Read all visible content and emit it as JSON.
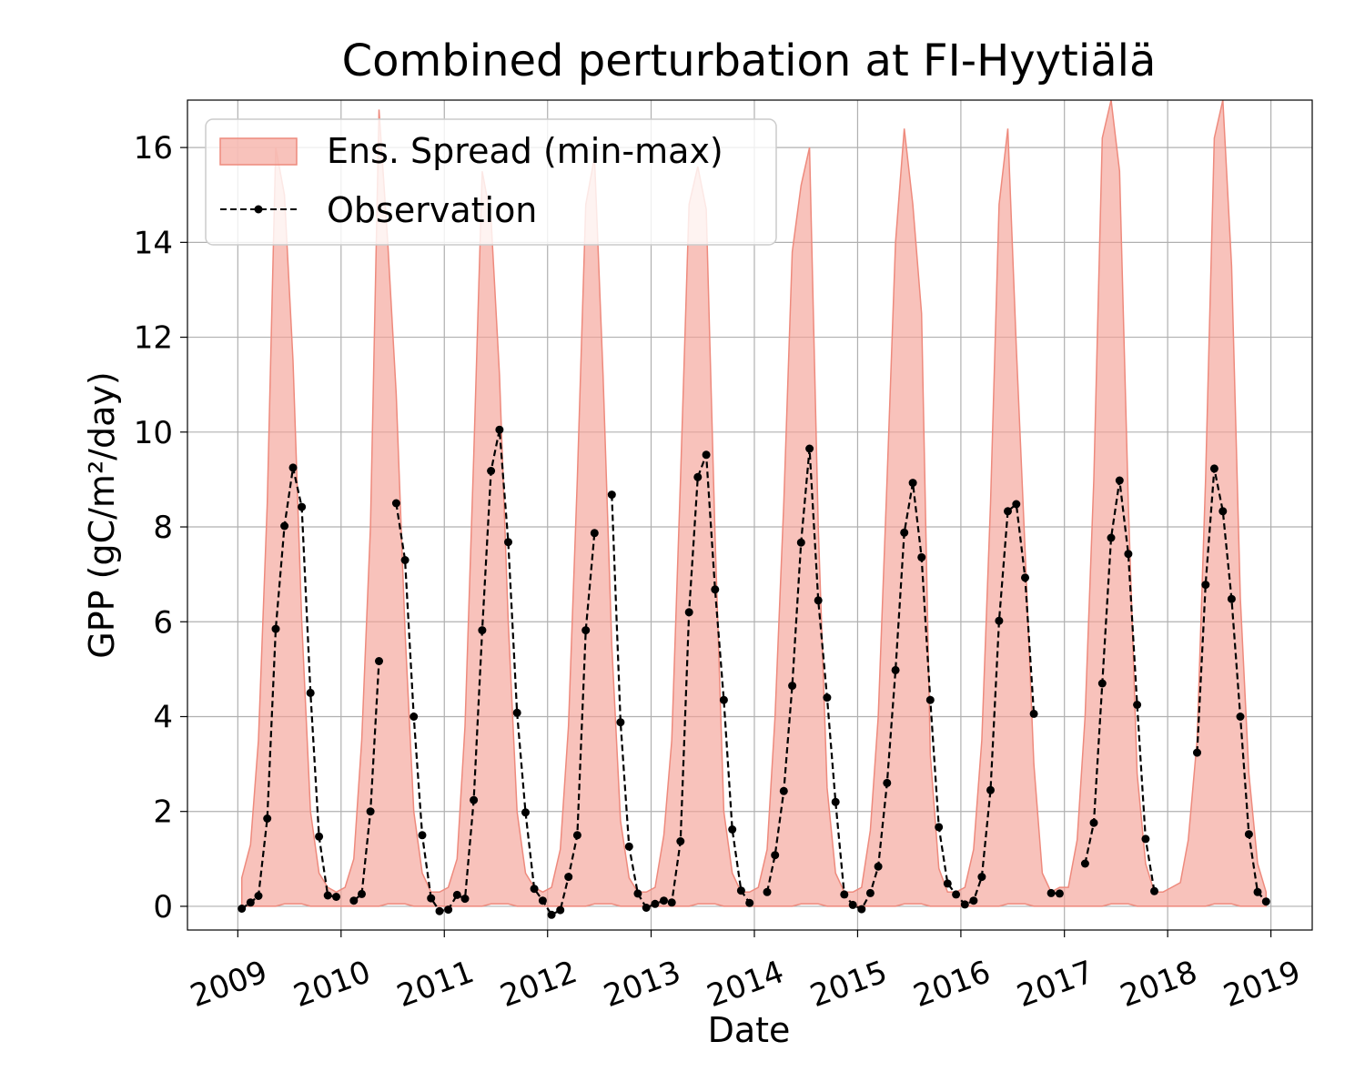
{
  "chart_data": {
    "type": "line",
    "title": "Combined perturbation at FI-Hyytiälä",
    "xlabel": "Date",
    "ylabel": "GPP  (gC/m²/day)",
    "xlim": [
      "2008-07-07",
      "2019-05-27"
    ],
    "ylim": [
      -0.5,
      17.0
    ],
    "x_ticks": [
      "2009",
      "2010",
      "2011",
      "2012",
      "2013",
      "2014",
      "2015",
      "2016",
      "2017",
      "2018",
      "2019"
    ],
    "y_ticks": [
      "0",
      "2",
      "4",
      "6",
      "8",
      "10",
      "12",
      "14",
      "16"
    ],
    "grid": true,
    "legend_position": "upper-left",
    "colors": {
      "spread_fill": "#f4a196",
      "spread_edge": "#ee8a7d",
      "observation": "#000000"
    },
    "series": [
      {
        "name": "Ens. Spread (min-max)",
        "kind": "band",
        "x": [
          "2009-01",
          "2009-02",
          "2009-03",
          "2009-04",
          "2009-05",
          "2009-06",
          "2009-07",
          "2009-08",
          "2009-09",
          "2009-10",
          "2009-11",
          "2009-12",
          "2010-01",
          "2010-02",
          "2010-03",
          "2010-04",
          "2010-05",
          "2010-06",
          "2010-07",
          "2010-08",
          "2010-09",
          "2010-10",
          "2010-11",
          "2010-12",
          "2011-01",
          "2011-02",
          "2011-03",
          "2011-04",
          "2011-05",
          "2011-06",
          "2011-07",
          "2011-08",
          "2011-09",
          "2011-10",
          "2011-11",
          "2011-12",
          "2012-01",
          "2012-02",
          "2012-03",
          "2012-04",
          "2012-05",
          "2012-06",
          "2012-07",
          "2012-08",
          "2012-09",
          "2012-10",
          "2012-11",
          "2012-12",
          "2013-01",
          "2013-02",
          "2013-03",
          "2013-04",
          "2013-05",
          "2013-06",
          "2013-07",
          "2013-08",
          "2013-09",
          "2013-10",
          "2013-11",
          "2013-12",
          "2014-01",
          "2014-02",
          "2014-03",
          "2014-04",
          "2014-05",
          "2014-06",
          "2014-07",
          "2014-08",
          "2014-09",
          "2014-10",
          "2014-11",
          "2014-12",
          "2015-01",
          "2015-02",
          "2015-03",
          "2015-04",
          "2015-05",
          "2015-06",
          "2015-07",
          "2015-08",
          "2015-09",
          "2015-10",
          "2015-11",
          "2015-12",
          "2016-01",
          "2016-02",
          "2016-03",
          "2016-04",
          "2016-05",
          "2016-06",
          "2016-07",
          "2016-08",
          "2016-09",
          "2016-10",
          "2016-11",
          "2016-12",
          "2017-01",
          "2017-02",
          "2017-03",
          "2017-04",
          "2017-05",
          "2017-06",
          "2017-07",
          "2017-08",
          "2017-09",
          "2017-10",
          "2017-11",
          "2017-12",
          "2018-01",
          "2018-02",
          "2018-03",
          "2018-04",
          "2018-05",
          "2018-06",
          "2018-07",
          "2018-08",
          "2018-09",
          "2018-10",
          "2018-11",
          "2018-12"
        ],
        "lower": [
          0,
          0,
          0,
          0,
          0,
          0.05,
          0.05,
          0.05,
          0,
          0,
          0,
          0,
          0,
          0,
          0,
          0,
          0,
          0.05,
          0.05,
          0.05,
          0,
          0,
          0,
          0,
          0,
          0,
          0,
          0,
          0,
          0.05,
          0.05,
          0.05,
          0,
          0,
          0,
          0,
          0,
          0,
          0,
          0,
          0,
          0.05,
          0.05,
          0.05,
          0,
          0,
          0,
          0,
          0,
          0,
          0,
          0,
          0,
          0.05,
          0.05,
          0.05,
          0,
          0,
          0,
          0,
          0,
          0,
          0,
          0,
          0,
          0.05,
          0.05,
          0.05,
          0,
          0,
          0,
          0,
          0,
          0,
          0,
          0,
          0,
          0.05,
          0.05,
          0.05,
          0,
          0,
          0,
          0,
          0,
          0,
          0,
          0,
          0,
          0.05,
          0.05,
          0.05,
          0,
          0,
          0,
          0,
          0,
          0,
          0,
          0,
          0,
          0.05,
          0.05,
          0.05,
          0,
          0,
          0,
          0,
          0,
          0,
          0,
          0,
          0,
          0.05,
          0.05,
          0.05,
          0,
          0,
          0,
          0
        ],
        "upper": [
          0.6,
          1.3,
          3.5,
          8.5,
          16.0,
          15.0,
          11.5,
          6.0,
          2.0,
          0.7,
          0.4,
          0.3,
          0.4,
          1.0,
          3.5,
          8.0,
          16.8,
          14.0,
          10.8,
          5.8,
          2.0,
          0.7,
          0.3,
          0.3,
          0.4,
          1.0,
          3.8,
          9.5,
          15.5,
          14.5,
          11.2,
          6.0,
          2.0,
          0.7,
          0.4,
          0.3,
          0.4,
          1.2,
          3.8,
          9.0,
          14.8,
          15.8,
          11.2,
          5.5,
          1.8,
          0.6,
          0.3,
          0.3,
          0.4,
          1.5,
          3.5,
          9.0,
          14.8,
          15.6,
          14.7,
          7.8,
          2.0,
          0.7,
          0.3,
          0.3,
          0.4,
          1.2,
          4.0,
          8.5,
          13.8,
          15.2,
          16.0,
          8.0,
          2.5,
          0.7,
          0.3,
          0.3,
          0.4,
          1.6,
          4.0,
          9.0,
          14.0,
          16.4,
          14.8,
          12.5,
          3.2,
          0.8,
          0.3,
          0.3,
          0.4,
          1.2,
          3.5,
          8.5,
          14.8,
          16.4,
          11.8,
          7.5,
          3.0,
          0.7,
          0.3,
          0.4,
          0.4,
          1.4,
          4.0,
          9.0,
          16.2,
          17.0,
          15.5,
          8.5,
          2.8,
          0.9,
          0.3,
          0.3,
          0.4,
          0.5,
          1.4,
          3.5,
          9.0,
          16.2,
          17.1,
          13.5,
          6.5,
          2.8,
          0.9,
          0.3
        ]
      },
      {
        "name": "Observation",
        "kind": "line-markers",
        "style": "dashed",
        "points": [
          [
            "2009-01",
            -0.05
          ],
          [
            "2009-02",
            0.08
          ],
          [
            "2009-03",
            0.22
          ],
          [
            "2009-04",
            1.85
          ],
          [
            "2009-05",
            5.85
          ],
          [
            "2009-06",
            8.02
          ],
          [
            "2009-07",
            9.25
          ],
          [
            "2009-08",
            8.42
          ],
          [
            "2009-09",
            4.5
          ],
          [
            "2009-10",
            1.47
          ],
          [
            "2009-11",
            0.23
          ],
          [
            "2009-12",
            0.2
          ],
          [
            "2010-02",
            0.12
          ],
          [
            "2010-03",
            0.26
          ],
          [
            "2010-04",
            2.0
          ],
          [
            "2010-05",
            5.17
          ],
          [
            "2010-07",
            8.5
          ],
          [
            "2010-08",
            7.3
          ],
          [
            "2010-09",
            4.0
          ],
          [
            "2010-10",
            1.5
          ],
          [
            "2010-11",
            0.17
          ],
          [
            "2010-12",
            -0.1
          ],
          [
            "2011-01",
            -0.07
          ],
          [
            "2011-02",
            0.24
          ],
          [
            "2011-03",
            0.16
          ],
          [
            "2011-04",
            2.24
          ],
          [
            "2011-05",
            5.82
          ],
          [
            "2011-06",
            9.18
          ],
          [
            "2011-07",
            10.05
          ],
          [
            "2011-08",
            7.68
          ],
          [
            "2011-09",
            4.08
          ],
          [
            "2011-10",
            1.98
          ],
          [
            "2011-11",
            0.37
          ],
          [
            "2011-12",
            0.12
          ],
          [
            "2012-01",
            -0.18
          ],
          [
            "2012-02",
            -0.08
          ],
          [
            "2012-03",
            0.62
          ],
          [
            "2012-04",
            1.5
          ],
          [
            "2012-05",
            5.82
          ],
          [
            "2012-06",
            7.87
          ],
          [
            "2012-08",
            8.68
          ],
          [
            "2012-09",
            3.88
          ],
          [
            "2012-10",
            1.26
          ],
          [
            "2012-11",
            0.27
          ],
          [
            "2012-12",
            -0.03
          ],
          [
            "2013-01",
            0.05
          ],
          [
            "2013-02",
            0.12
          ],
          [
            "2013-03",
            0.08
          ],
          [
            "2013-04",
            1.37
          ],
          [
            "2013-05",
            6.2
          ],
          [
            "2013-06",
            9.05
          ],
          [
            "2013-07",
            9.52
          ],
          [
            "2013-08",
            6.68
          ],
          [
            "2013-09",
            4.35
          ],
          [
            "2013-10",
            1.62
          ],
          [
            "2013-11",
            0.33
          ],
          [
            "2013-12",
            0.07
          ],
          [
            "2014-02",
            0.3
          ],
          [
            "2014-03",
            1.08
          ],
          [
            "2014-04",
            2.43
          ],
          [
            "2014-05",
            4.65
          ],
          [
            "2014-06",
            7.67
          ],
          [
            "2014-07",
            9.65
          ],
          [
            "2014-08",
            6.45
          ],
          [
            "2014-09",
            4.4
          ],
          [
            "2014-10",
            2.2
          ],
          [
            "2014-11",
            0.25
          ],
          [
            "2014-12",
            0.03
          ],
          [
            "2015-01",
            -0.06
          ],
          [
            "2015-02",
            0.28
          ],
          [
            "2015-03",
            0.84
          ],
          [
            "2015-04",
            2.6
          ],
          [
            "2015-05",
            4.98
          ],
          [
            "2015-06",
            7.88
          ],
          [
            "2015-07",
            8.93
          ],
          [
            "2015-08",
            7.36
          ],
          [
            "2015-09",
            4.35
          ],
          [
            "2015-10",
            1.67
          ],
          [
            "2015-11",
            0.48
          ],
          [
            "2015-12",
            0.25
          ],
          [
            "2016-01",
            0.04
          ],
          [
            "2016-02",
            0.12
          ],
          [
            "2016-03",
            0.62
          ],
          [
            "2016-04",
            2.45
          ],
          [
            "2016-05",
            6.02
          ],
          [
            "2016-06",
            8.33
          ],
          [
            "2016-07",
            8.48
          ],
          [
            "2016-08",
            6.93
          ],
          [
            "2016-09",
            4.06
          ],
          [
            "2016-11",
            0.28
          ],
          [
            "2016-12",
            0.27
          ],
          [
            "2017-03",
            0.9
          ],
          [
            "2017-04",
            1.76
          ],
          [
            "2017-05",
            4.7
          ],
          [
            "2017-06",
            7.77
          ],
          [
            "2017-07",
            8.98
          ],
          [
            "2017-08",
            7.43
          ],
          [
            "2017-09",
            4.25
          ],
          [
            "2017-10",
            1.42
          ],
          [
            "2017-11",
            0.32
          ],
          [
            "2018-04",
            3.24
          ],
          [
            "2018-05",
            6.78
          ],
          [
            "2018-06",
            9.23
          ],
          [
            "2018-07",
            8.33
          ],
          [
            "2018-08",
            6.48
          ],
          [
            "2018-09",
            4.0
          ],
          [
            "2018-10",
            1.52
          ],
          [
            "2018-11",
            0.3
          ],
          [
            "2018-12",
            0.1
          ]
        ]
      }
    ]
  }
}
